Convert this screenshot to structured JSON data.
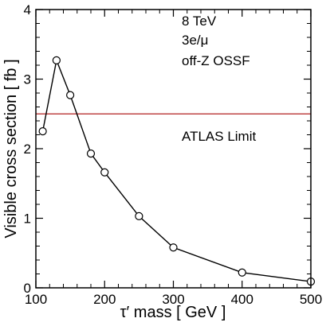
{
  "chart_data": {
    "type": "line",
    "xlabel": "τ′ mass [ GeV ]",
    "ylabel": "Visible cross section [ fb ]",
    "xlim": [
      100,
      500
    ],
    "ylim": [
      0,
      4
    ],
    "x_ticks": [
      100,
      200,
      300,
      400,
      500
    ],
    "y_ticks": [
      0,
      1,
      2,
      3,
      4
    ],
    "grid": false,
    "series": [
      {
        "x": [
          110,
          130,
          150,
          180,
          200,
          250,
          300,
          400,
          500
        ],
        "y": [
          2.25,
          3.27,
          2.77,
          1.93,
          1.66,
          1.03,
          0.58,
          0.22,
          0.09
        ],
        "color": "#000000",
        "marker": "open-circle"
      }
    ],
    "reference_lines": [
      {
        "y": 2.5,
        "label": "ATLAS Limit",
        "color": "#b22222"
      }
    ],
    "annotations": [
      "8 TeV",
      "3e/μ",
      "off-Z OSSF"
    ]
  }
}
